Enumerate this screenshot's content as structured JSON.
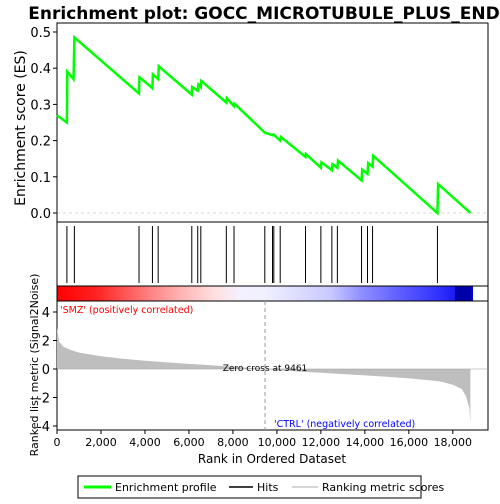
{
  "chart_data": {
    "type": "line",
    "title": "Enrichment plot: GOCC_MICROTUBULE_PLUS_END",
    "es_panel": {
      "ylabel": "Enrichment score (ES)",
      "ylim": [
        0.0,
        0.5
      ],
      "yticks": [
        "0.0",
        "0.1",
        "0.2",
        "0.3",
        "0.4",
        "0.5"
      ],
      "ytick_values": [
        0.0,
        0.1,
        0.2,
        0.3,
        0.4,
        0.5
      ],
      "series_color": "#00ff00",
      "profile_points": [
        [
          0,
          0.27
        ],
        [
          450,
          0.25
        ],
        [
          470,
          0.39
        ],
        [
          750,
          0.37
        ],
        [
          790,
          0.485
        ],
        [
          3730,
          0.33
        ],
        [
          3750,
          0.375
        ],
        [
          4340,
          0.345
        ],
        [
          4360,
          0.383
        ],
        [
          4600,
          0.37
        ],
        [
          4630,
          0.405
        ],
        [
          6130,
          0.327
        ],
        [
          6150,
          0.348
        ],
        [
          6400,
          0.338
        ],
        [
          6430,
          0.355
        ],
        [
          6540,
          0.348
        ],
        [
          6560,
          0.365
        ],
        [
          7700,
          0.305
        ],
        [
          7720,
          0.317
        ],
        [
          8050,
          0.295
        ],
        [
          8070,
          0.302
        ],
        [
          9450,
          0.222
        ],
        [
          9800,
          0.215
        ],
        [
          9840,
          0.217
        ],
        [
          10150,
          0.2
        ],
        [
          10180,
          0.21
        ],
        [
          11300,
          0.155
        ],
        [
          11320,
          0.163
        ],
        [
          12000,
          0.125
        ],
        [
          12030,
          0.14
        ],
        [
          12500,
          0.118
        ],
        [
          12530,
          0.135
        ],
        [
          12750,
          0.125
        ],
        [
          12780,
          0.145
        ],
        [
          13850,
          0.09
        ],
        [
          13880,
          0.12
        ],
        [
          14120,
          0.108
        ],
        [
          14150,
          0.138
        ],
        [
          14350,
          0.128
        ],
        [
          14380,
          0.158
        ],
        [
          17300,
          0.0
        ],
        [
          17330,
          0.08
        ],
        [
          18800,
          0.0
        ]
      ]
    },
    "hits": [
      450,
      790,
      3730,
      4340,
      4600,
      6130,
      6400,
      6540,
      7700,
      8050,
      9450,
      9800,
      9860,
      10150,
      11300,
      12000,
      12500,
      12750,
      13850,
      14120,
      14350,
      17300
    ],
    "ranked_panel": {
      "ylabel": "Ranked list metric (Signal2Noise)",
      "ylim": [
        -4,
        4
      ],
      "yticks": [
        "4",
        "2",
        "0",
        "-2",
        "-4"
      ],
      "ytick_values": [
        4,
        2,
        0,
        -2,
        -4
      ],
      "zero_cross_label": "Zero cross at 9461",
      "zero_cross": 9461,
      "positive_label": "'SMZ' (positively correlated)",
      "negative_label": "'CTRL' (negatively correlated)",
      "metric_points": [
        [
          0,
          2.9
        ],
        [
          100,
          1.9
        ],
        [
          300,
          1.55
        ],
        [
          600,
          1.35
        ],
        [
          1000,
          1.15
        ],
        [
          2000,
          0.9
        ],
        [
          3000,
          0.72
        ],
        [
          4000,
          0.58
        ],
        [
          5000,
          0.46
        ],
        [
          6000,
          0.36
        ],
        [
          7000,
          0.26
        ],
        [
          8000,
          0.16
        ],
        [
          9000,
          0.06
        ],
        [
          9461,
          0.0
        ],
        [
          10000,
          -0.08
        ],
        [
          11000,
          -0.18
        ],
        [
          12000,
          -0.27
        ],
        [
          13000,
          -0.36
        ],
        [
          14000,
          -0.45
        ],
        [
          15000,
          -0.55
        ],
        [
          16000,
          -0.66
        ],
        [
          17000,
          -0.8
        ],
        [
          17500,
          -0.9
        ],
        [
          18000,
          -1.1
        ],
        [
          18400,
          -1.4
        ],
        [
          18600,
          -1.9
        ],
        [
          18750,
          -2.7
        ],
        [
          18800,
          -3.8
        ]
      ]
    },
    "xlabel": "Rank in Ordered Dataset",
    "xlim": [
      0,
      19600
    ],
    "xticks": [
      "0",
      "2,000",
      "4,000",
      "6,000",
      "8,000",
      "10,000",
      "12,000",
      "14,000",
      "16,000",
      "18,000"
    ],
    "xtick_values": [
      0,
      2000,
      4000,
      6000,
      8000,
      10000,
      12000,
      14000,
      16000,
      18000
    ],
    "dataset_size": 18800,
    "legend": {
      "placement": "bottom",
      "items": [
        {
          "label": "Enrichment profile",
          "color": "#00ff00"
        },
        {
          "label": "Hits",
          "color": "#000000"
        },
        {
          "label": "Ranking metric scores",
          "color": "#c8c8c8"
        }
      ]
    },
    "colors": {
      "heat_red": "#ff0000",
      "heat_white": "#ffffff",
      "heat_blue": "#0000ff",
      "metric_fill": "#bebebe",
      "positive_label_color": "#ff0000",
      "negative_label_color": "#0000ff"
    }
  }
}
